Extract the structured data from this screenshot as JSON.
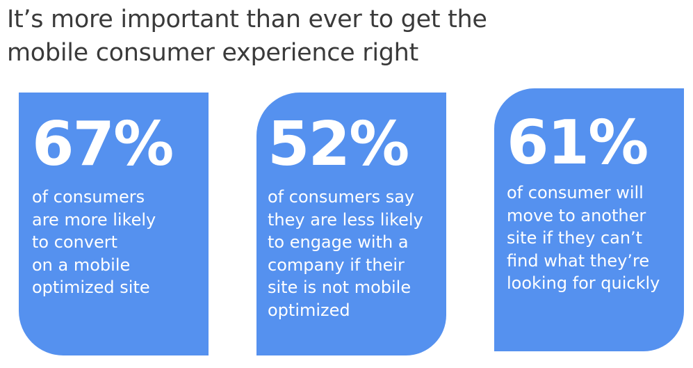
{
  "title": {
    "lines": [
      "It’s more important than ever to get the",
      "mobile consumer experience right"
    ]
  },
  "cards": [
    {
      "stat": "67%",
      "lines": [
        "of consumers",
        "are more likely",
        "to convert",
        "on a mobile",
        "optimized site"
      ]
    },
    {
      "stat": "52%",
      "lines": [
        "of consumers say",
        "they are less likely",
        "to engage with a",
        "company if their",
        "site is not mobile",
        "optimized"
      ]
    },
    {
      "stat": "61%",
      "lines": [
        "of consumer will",
        "move to another",
        "site if they can’t",
        "find what they’re",
        "looking for quickly"
      ]
    }
  ],
  "colors": {
    "card": "#5591ef",
    "title": "#3a3a3a"
  }
}
